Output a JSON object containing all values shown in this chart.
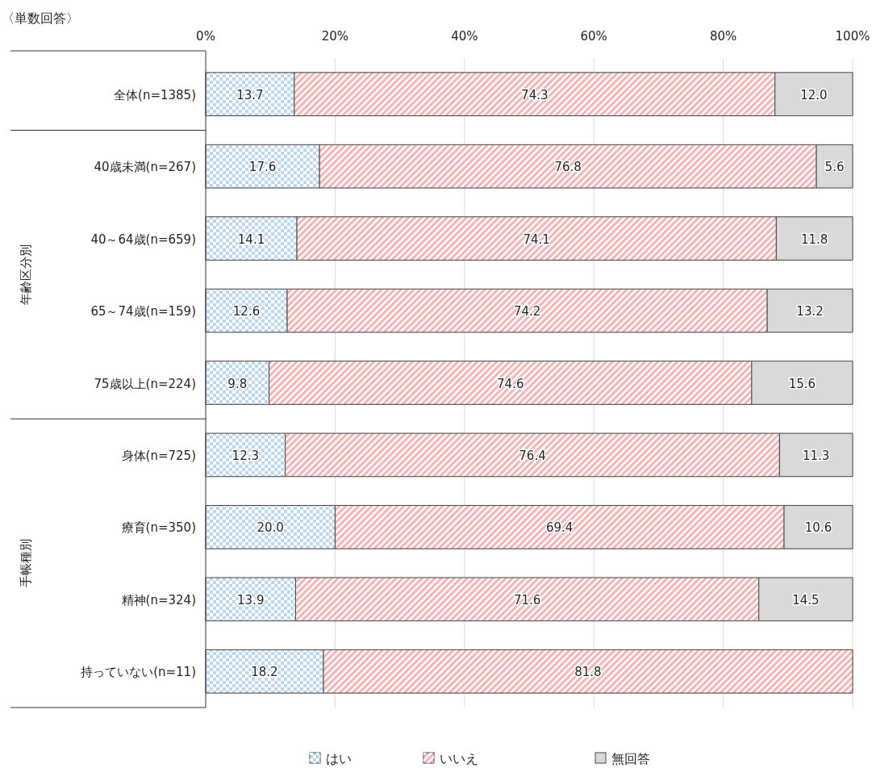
{
  "chart_data": {
    "type": "bar",
    "orientation": "horizontal",
    "stacked": true,
    "categories": [
      "全体(n=1385)",
      "40歳未満(n=267)",
      "40～64歳(n=659)",
      "65～74歳(n=159)",
      "75歳以上(n=224)",
      "身体(n=725)",
      "療育(n=350)",
      "精神(n=324)",
      "持っていない(n=11)"
    ],
    "series": [
      {
        "name": "はい",
        "color": "#bdd7ee",
        "values": [
          13.7,
          17.6,
          14.1,
          12.6,
          9.8,
          12.3,
          20.0,
          13.9,
          18.2
        ],
        "value_labels": [
          "13.7",
          "17.6",
          "14.1",
          "12.6",
          "9.8",
          "12.3",
          "20.0",
          "13.9",
          "18.2"
        ]
      },
      {
        "name": "いいえ",
        "color": "#f4b6b6",
        "values": [
          74.3,
          76.8,
          74.1,
          74.2,
          74.6,
          76.4,
          69.4,
          71.6,
          81.8
        ],
        "value_labels": [
          "74.3",
          "76.8",
          "74.1",
          "74.2",
          "74.6",
          "76.4",
          "69.4",
          "71.6",
          "81.8"
        ]
      },
      {
        "name": "無回答",
        "color": "#d9d9d9",
        "values": [
          12.0,
          5.6,
          11.8,
          13.2,
          15.6,
          11.3,
          10.6,
          14.5,
          null
        ],
        "value_labels": [
          "12.0",
          "5.6",
          "11.8",
          "13.2",
          "15.6",
          "11.3",
          "10.6",
          "14.5",
          null
        ]
      }
    ],
    "xlim": [
      0,
      100
    ],
    "xticks": [
      {
        "value": 0,
        "label": "0%"
      },
      {
        "value": 20,
        "label": "20%"
      },
      {
        "value": 40,
        "label": "40%"
      },
      {
        "value": 60,
        "label": "60%"
      },
      {
        "value": 80,
        "label": "80%"
      },
      {
        "value": 100,
        "label": "100%"
      }
    ],
    "grid": "x",
    "legend": "bottom",
    "annotations": [
      "〈単数回答〉",
      "年齢区分別",
      "手帳種別"
    ]
  }
}
